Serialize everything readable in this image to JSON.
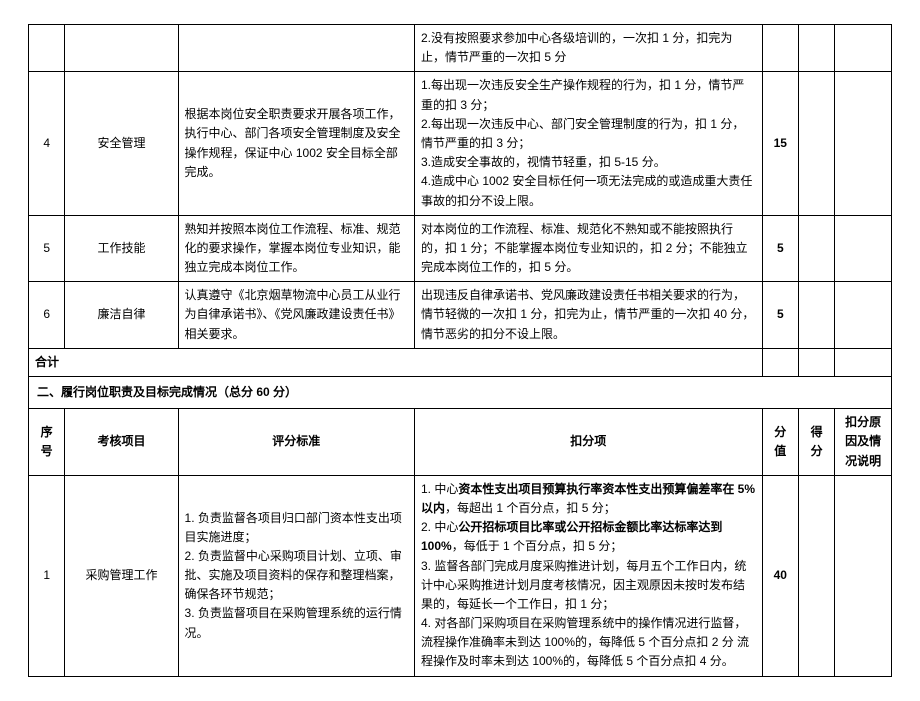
{
  "top": {
    "row_partial": {
      "deduction": "2.没有按照要求参加中心各级培训的，一次扣 1 分，扣完为止，情节严重的一次扣 5 分"
    },
    "rows": [
      {
        "seq": "4",
        "item": "安全管理",
        "standard": "根据本岗位安全职责要求开展各项工作，执行中心、部门各项安全管理制度及安全操作规程，保证中心 1002 安全目标全部完成。",
        "deduction": "1.每出现一次违反安全生产操作规程的行为，扣 1 分，情节严重的扣 3 分；\n2.每出现一次违反中心、部门安全管理制度的行为，扣 1 分，情节严重的扣 3 分；\n3.造成安全事故的，视情节轻重，扣 5-15 分。\n4.造成中心 1002 安全目标任何一项无法完成的或造成重大责任事故的扣分不设上限。",
        "score": "15"
      },
      {
        "seq": "5",
        "item": "工作技能",
        "standard": "熟知并按照本岗位工作流程、标准、规范化的要求操作，掌握本岗位专业知识，能独立完成本岗位工作。",
        "deduction": "对本岗位的工作流程、标准、规范化不熟知或不能按照执行的，扣 1 分；不能掌握本岗位专业知识的，扣 2 分；不能独立完成本岗位工作的，扣 5 分。",
        "score": "5"
      },
      {
        "seq": "6",
        "item": "廉洁自律",
        "standard": "认真遵守《北京烟草物流中心员工从业行为自律承诺书》、《党风廉政建设责任书》相关要求。",
        "deduction": "出现违反自律承诺书、党风廉政建设责任书相关要求的行为，情节轻微的一次扣 1 分，扣完为止，情节严重的一次扣 40 分，情节恶劣的扣分不设上限。",
        "score": "5"
      }
    ],
    "heji_label": "合计"
  },
  "section2": {
    "title": "二、履行岗位职责及目标完成情况（总分 60 分）",
    "headers": {
      "seq": "序号",
      "item": "考核项目",
      "standard": "评分标准",
      "deduction": "扣分项",
      "score": "分值",
      "got": "得分",
      "reason": "扣分原因及情况说明"
    },
    "rows": [
      {
        "seq": "1",
        "item": "采购管理工作",
        "standard": "1. 负责监督各项目归口部门资本性支出项目实施进度；\n2. 负责监督中心采购项目计划、立项、审批、实施及项目资料的保存和整理档案，确保各环节规范；\n3. 负责监督项目在采购管理系统的运行情况。",
        "deduction_parts": {
          "p1a": "1. 中心",
          "p1b": "资本性支出项目预算执行率资本性支出预算偏差率在 5%以内",
          "p1c": "，每超出 1 个百分点，扣 5 分；",
          "p2a": "2. 中心",
          "p2b": "公开招标项目比率或公开招标金额比率达标率达到 100%",
          "p2c": "，每低于 1 个百分点，扣 5 分；",
          "p3": "3. 监督各部门完成月度采购推进计划，每月五个工作日内，统计中心采购推进计划月度考核情况，因主观原因未按时发布结果的，每延长一个工作日，扣 1 分；",
          "p4": "4. 对各部门采购项目在采购管理系统中的操作情况进行监督，流程操作准确率未到达 100%的，每降低 5 个百分点扣 2 分 流程操作及时率未到达 100%的，每降低 5 个百分点扣 4 分。"
        },
        "score": "40"
      }
    ]
  }
}
